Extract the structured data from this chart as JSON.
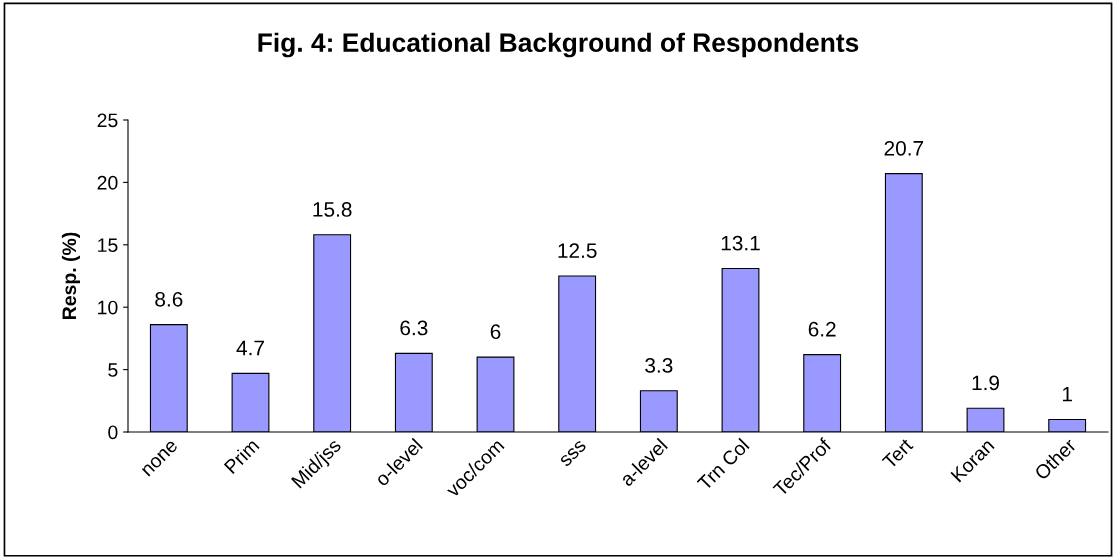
{
  "chart_data": {
    "type": "bar",
    "title": "Fig. 4: Educational Background of Respondents",
    "ylabel": "Resp. (%)",
    "categories": [
      "none",
      "Prim",
      "Mid/jss",
      "o-level",
      "voc/com",
      "sss",
      "a-level",
      "Trn Col",
      "Tec/Prof",
      "Tert",
      "Koran",
      "Other"
    ],
    "values": [
      8.6,
      4.7,
      15.8,
      6.3,
      6,
      12.5,
      3.3,
      13.1,
      6.2,
      20.7,
      1.9,
      1
    ],
    "color": "#9999ff",
    "ylim": [
      0,
      25
    ],
    "yticks": [
      0,
      5,
      10,
      15,
      20,
      25
    ],
    "grid": false,
    "legend": false,
    "data_labels": true
  }
}
